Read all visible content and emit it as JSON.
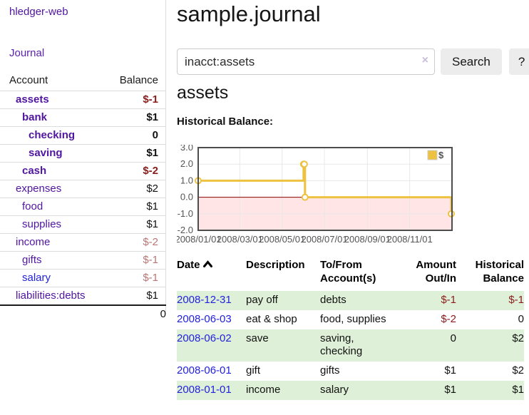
{
  "app": {
    "brand": "hledger-web",
    "nav_journal": "Journal"
  },
  "sidebar": {
    "header": {
      "account": "Account",
      "balance": "Balance"
    },
    "accounts": [
      {
        "name": "assets",
        "indent": 1,
        "bold": true,
        "balance": "$-1",
        "balance_class": "neg"
      },
      {
        "name": "bank",
        "indent": 2,
        "bold": true,
        "balance": "$1",
        "balance_class": ""
      },
      {
        "name": "checking",
        "indent": 3,
        "bold": true,
        "balance": "0",
        "balance_class": ""
      },
      {
        "name": "saving",
        "indent": 3,
        "bold": true,
        "balance": "$1",
        "balance_class": ""
      },
      {
        "name": "cash",
        "indent": 2,
        "bold": true,
        "balance": "$-2",
        "balance_class": "neg"
      },
      {
        "name": "expenses",
        "indent": 1,
        "bold": false,
        "balance": "$2",
        "balance_class": ""
      },
      {
        "name": "food",
        "indent": 2,
        "bold": false,
        "balance": "$1",
        "balance_class": ""
      },
      {
        "name": "supplies",
        "indent": 2,
        "bold": false,
        "balance": "$1",
        "balance_class": ""
      },
      {
        "name": "income",
        "indent": 1,
        "bold": false,
        "balance": "$-2",
        "balance_class": "rose"
      },
      {
        "name": "gifts",
        "indent": 2,
        "bold": false,
        "balance": "$-1",
        "balance_class": "rose"
      },
      {
        "name": "salary",
        "indent": 2,
        "bold": false,
        "balance": "$-1",
        "balance_class": "rose",
        "link": "blue"
      },
      {
        "name": "liabilities:debts",
        "indent": 1,
        "bold": false,
        "balance": "$1",
        "balance_class": ""
      }
    ],
    "total": "0"
  },
  "main": {
    "title": "sample.journal",
    "search": {
      "value": "inacct:assets",
      "clear_icon": "×",
      "button": "Search",
      "help": "?"
    },
    "account_heading": "assets",
    "chart_label": "Historical Balance:"
  },
  "chart_data": {
    "type": "line",
    "step": true,
    "title": "Historical Balance",
    "series": [
      {
        "name": "$",
        "points": [
          [
            "2008-01-01",
            1
          ],
          [
            "2008-06-01",
            2
          ],
          [
            "2008-06-02",
            2
          ],
          [
            "2008-06-03",
            0
          ],
          [
            "2008-12-31",
            -1
          ]
        ]
      }
    ],
    "x_range": [
      "2008-01-01",
      "2009-01-01"
    ],
    "x_ticks": [
      "2008/01/01",
      "2008/03/01",
      "2008/05/01",
      "2008/07/01",
      "2008/09/01",
      "2008/11/01"
    ],
    "y_ticks": [
      3.0,
      2.0,
      1.0,
      0.0,
      -1.0,
      -2.0
    ],
    "ylim": [
      -2,
      3
    ],
    "grid": true,
    "legend": {
      "position": "ne",
      "label": "$"
    },
    "colors": {
      "line": "#edc240",
      "marker_fill": "#ffffff",
      "negative_fill": "rgba(255,0,0,0.10)",
      "zero_line": "#8b0000",
      "grid": "#e8e8e8",
      "border": "#4d4d4d",
      "tick_label": "#545454"
    }
  },
  "register": {
    "columns": [
      "Date",
      "Description",
      "To/From Account(s)",
      "Amount Out/In",
      "Historical Balance"
    ],
    "sort": "ascending",
    "rows": [
      {
        "date": "2008-12-31",
        "description": "pay off",
        "accounts": "debts",
        "amount": "$-1",
        "amount_neg": true,
        "balance": "$-1",
        "balance_neg": true
      },
      {
        "date": "2008-06-03",
        "description": "eat & shop",
        "accounts": "food, supplies",
        "amount": "$-2",
        "amount_neg": true,
        "balance": "0",
        "balance_neg": false
      },
      {
        "date": "2008-06-02",
        "description": "save",
        "accounts": "saving, checking",
        "amount": "0",
        "amount_neg": false,
        "balance": "$2",
        "balance_neg": false
      },
      {
        "date": "2008-06-01",
        "description": "gift",
        "accounts": "gifts",
        "amount": "$1",
        "amount_neg": false,
        "balance": "$2",
        "balance_neg": false
      },
      {
        "date": "2008-01-01",
        "description": "income",
        "accounts": "salary",
        "amount": "$1",
        "amount_neg": false,
        "balance": "$1",
        "balance_neg": false
      }
    ]
  }
}
